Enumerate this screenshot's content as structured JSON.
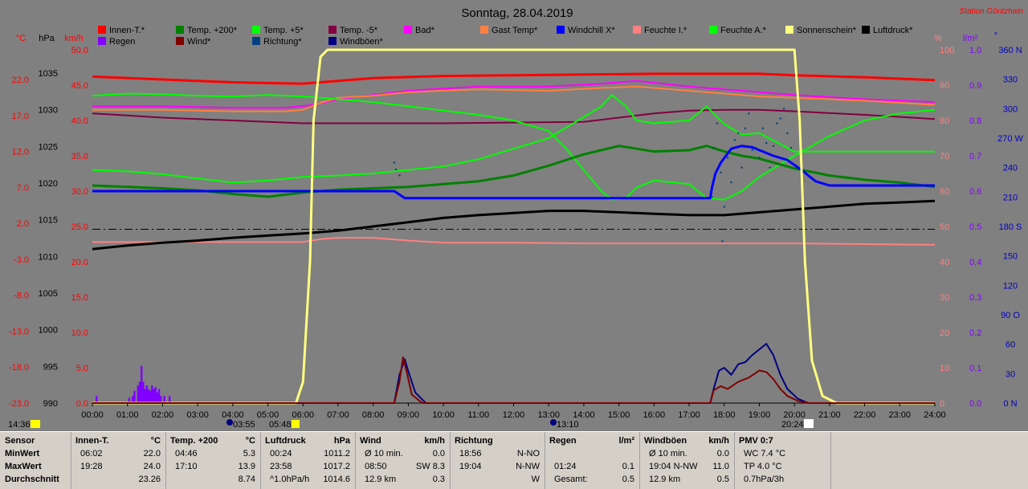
{
  "title": "Sonntag, 28.04.2019",
  "station": "Station Göritzhain",
  "legend_row1": [
    {
      "label": "Innen-T.*",
      "color": "#ff0000"
    },
    {
      "label": "Temp. +200*",
      "color": "#008000"
    },
    {
      "label": "Temp. +5*",
      "color": "#00ff00"
    },
    {
      "label": "Temp. -5*",
      "color": "#800040"
    },
    {
      "label": "Bad*",
      "color": "#ff00ff"
    },
    {
      "label": "Gast Temp*",
      "color": "#ff8040"
    },
    {
      "label": "Windchill X*",
      "color": "#0000ff"
    },
    {
      "label": "Feuchte I.*",
      "color": "#ff8080"
    },
    {
      "label": "Feuchte A.*",
      "color": "#00ff00"
    },
    {
      "label": "Sonnenschein*",
      "color": "#ffff80"
    },
    {
      "label": "Luftdruck*",
      "color": "#000000"
    }
  ],
  "legend_row2": [
    {
      "label": "Regen",
      "color": "#8000ff"
    },
    {
      "label": "Wind*",
      "color": "#800000"
    },
    {
      "label": "Richtung*",
      "color": "#004080"
    },
    {
      "label": "Windböen*",
      "color": "#000080"
    }
  ],
  "axis_units": {
    "temp": "°C",
    "press": "hPa",
    "wind": "km/h",
    "hum": "%",
    "rain": "l/m²",
    "dir": "°"
  },
  "axis_ticks": {
    "temp": [
      "22.0",
      "17.0",
      "12.0",
      "7.0",
      "2.0",
      "-3.0",
      "-8.0",
      "-13.0",
      "-18.0",
      "-23.0"
    ],
    "press": [
      "1035",
      "1030",
      "1025",
      "1020",
      "1015",
      "1010",
      "1005",
      "1000",
      "995",
      "990"
    ],
    "wind": [
      "50.0",
      "45.0",
      "40.0",
      "35.0",
      "30.0",
      "25.0",
      "20.0",
      "15.0",
      "10.0",
      "5.0",
      "0.0"
    ],
    "hum": [
      "100",
      "90",
      "80",
      "70",
      "60",
      "50",
      "40",
      "30",
      "20",
      "10",
      "0"
    ],
    "rain": [
      "1.0",
      "0.9",
      "0.8",
      "0.7",
      "0.6",
      "0.5",
      "0.4",
      "0.3",
      "0.2",
      "0.1",
      "0.0"
    ],
    "dir": [
      "360 N",
      "330",
      "300",
      "270 W",
      "240",
      "210",
      "180 S",
      "150",
      "120",
      "90 O",
      "60",
      "30",
      "0 N"
    ]
  },
  "x_ticks": [
    "00:00",
    "01:00",
    "02:00",
    "03:00",
    "04:00",
    "05:00",
    "06:00",
    "07:00",
    "08:00",
    "09:00",
    "10:00",
    "11:00",
    "12:00",
    "13:00",
    "14:00",
    "15:00",
    "16:00",
    "17:00",
    "18:00",
    "19:00",
    "20:00",
    "21:00",
    "22:00",
    "23:00",
    "24:00"
  ],
  "events": {
    "now": "14:36",
    "sunrise": "05:48",
    "dawn": "03:55",
    "sunset": "20:24",
    "moon": "13:10"
  },
  "chart_data": {
    "type": "line",
    "x_range_hours": [
      0,
      24
    ],
    "ylim_wind": [
      0,
      50
    ],
    "ylim_temp": [
      -23,
      22
    ],
    "ylim_press": [
      990,
      1035
    ],
    "ylim_hum": [
      0,
      100
    ],
    "ylim_rain": [
      0,
      1
    ],
    "ylim_dir": [
      0,
      360
    ],
    "series": [
      {
        "name": "Innen-T.*",
        "color": "#ff0000",
        "axis": "wind",
        "width": 3,
        "x": [
          0,
          2,
          4,
          5,
          6,
          7,
          8,
          10,
          12,
          14,
          16,
          18,
          19,
          20,
          22,
          24
        ],
        "y": [
          46.2,
          45.8,
          45.4,
          45.3,
          45.2,
          45.6,
          46.0,
          46.3,
          46.4,
          46.5,
          46.6,
          46.6,
          46.6,
          46.4,
          46.1,
          45.7
        ]
      },
      {
        "name": "Bad*",
        "color": "#ff00ff",
        "axis": "wind",
        "width": 2,
        "x": [
          0,
          2,
          4,
          5.5,
          6.3,
          7,
          8,
          9,
          11,
          13,
          14.5,
          15.5,
          17,
          19,
          20,
          22,
          24
        ],
        "y": [
          42.0,
          42.0,
          41.8,
          41.8,
          42.2,
          43.0,
          43.6,
          44.2,
          44.8,
          44.8,
          45.2,
          45.6,
          44.8,
          44.0,
          43.6,
          43.0,
          42.6
        ]
      },
      {
        "name": "Gast Temp*",
        "color": "#ff8040",
        "axis": "wind",
        "width": 2,
        "x": [
          0,
          2,
          4,
          5.5,
          6,
          6.5,
          7,
          8,
          9,
          11,
          13,
          14.5,
          15.5,
          17,
          19,
          20,
          22,
          24
        ],
        "y": [
          41.5,
          41.5,
          41.3,
          41.3,
          41.5,
          42.5,
          43.2,
          43.5,
          44.0,
          44.4,
          44.2,
          44.6,
          44.8,
          44.2,
          43.4,
          43.2,
          42.8,
          42.2
        ]
      },
      {
        "name": "Temp. -5*",
        "color": "#800040",
        "axis": "wind",
        "width": 2,
        "x": [
          0,
          2,
          4,
          6,
          8,
          10,
          12,
          14,
          15,
          16,
          17,
          18,
          19,
          20,
          22,
          24
        ],
        "y": [
          41.0,
          40.4,
          40.0,
          39.6,
          39.6,
          39.6,
          39.7,
          39.8,
          40.4,
          41.0,
          41.4,
          41.5,
          41.5,
          41.3,
          40.8,
          40.2
        ]
      },
      {
        "name": "Temp. +5* (upper)",
        "color": "#00ff00",
        "axis": "wind",
        "width": 2,
        "x": [
          0,
          1,
          2,
          3,
          4,
          5,
          6,
          7,
          8,
          9,
          10,
          11,
          12,
          13,
          13.5,
          14,
          14.5,
          14.8,
          15.2,
          15.5,
          16,
          17,
          17.5,
          18,
          18.5,
          19,
          20,
          21,
          22,
          23,
          24
        ],
        "y": [
          43.5,
          43.8,
          43.7,
          43.5,
          43.4,
          43.6,
          43.4,
          43.0,
          42.6,
          42.0,
          41.4,
          40.8,
          40.0,
          38.5,
          36.0,
          33.0,
          30.0,
          28.8,
          29.0,
          30.5,
          31.5,
          31.0,
          29.0,
          28.8,
          30.0,
          32.0,
          35.0,
          37.8,
          40.0,
          41.0,
          41.5
        ]
      },
      {
        "name": "Temp. +5* (lower)",
        "color": "#00ff00",
        "axis": "wind",
        "width": 2,
        "x": [
          0,
          1,
          2,
          3,
          4,
          5,
          6,
          7,
          8,
          9,
          10,
          11,
          12,
          13,
          13.5,
          14,
          14.5,
          14.8,
          15.2,
          15.5,
          16,
          17,
          17.5,
          18,
          18.5,
          19,
          20,
          21,
          22,
          23,
          24
        ],
        "y": [
          33.0,
          32.8,
          32.4,
          31.8,
          31.2,
          31.5,
          32.0,
          32.2,
          32.5,
          33.0,
          33.5,
          34.5,
          36.0,
          37.5,
          39.0,
          40.5,
          42.0,
          43.6,
          42.0,
          40.0,
          39.6,
          40.0,
          42.0,
          39.5,
          38.0,
          38.2,
          35.6,
          35.6,
          35.6,
          35.6,
          35.6
        ]
      },
      {
        "name": "Temp. +200*",
        "color": "#008000",
        "axis": "wind",
        "width": 3,
        "x": [
          0,
          1,
          2,
          3,
          4,
          5,
          6,
          7,
          8,
          9,
          10,
          11,
          12,
          13,
          14,
          15,
          16,
          17,
          17.5,
          18,
          18.5,
          19,
          20,
          21,
          22,
          23,
          24
        ],
        "y": [
          30.8,
          30.6,
          30.4,
          30.1,
          29.6,
          29.2,
          29.8,
          30.2,
          30.4,
          30.6,
          31.0,
          31.4,
          32.2,
          33.6,
          35.2,
          36.4,
          35.6,
          35.8,
          36.4,
          35.6,
          35.0,
          34.6,
          33.2,
          32.2,
          31.6,
          31.2,
          30.6
        ]
      },
      {
        "name": "Windchill X*",
        "color": "#0000ff",
        "axis": "wind",
        "width": 3,
        "x": [
          0,
          2,
          4,
          6,
          8,
          8.6,
          8.9,
          10,
          12,
          14,
          16,
          17.6,
          17.65,
          17.75,
          17.9,
          18.2,
          18.5,
          18.8,
          19,
          19.4,
          19.8,
          20.2,
          20.6,
          21,
          22,
          23,
          24
        ],
        "y": [
          30.0,
          30.0,
          30.0,
          30.0,
          30.0,
          30.0,
          29.0,
          29.0,
          29.0,
          29.0,
          29.0,
          29.0,
          30.5,
          32.5,
          34.0,
          36.0,
          36.4,
          36.2,
          35.8,
          35.0,
          34.4,
          33.0,
          31.4,
          30.8,
          30.8,
          30.8,
          30.8
        ]
      },
      {
        "name": "Feuchte I.*",
        "color": "#ff8080",
        "axis": "wind",
        "width": 2,
        "x": [
          0,
          2,
          4,
          6,
          6.5,
          7,
          8,
          9,
          10,
          12,
          14,
          16,
          18,
          20,
          22,
          24
        ],
        "y": [
          22.8,
          22.8,
          22.8,
          22.8,
          23.2,
          23.4,
          23.4,
          23.0,
          22.7,
          22.7,
          22.6,
          22.6,
          22.6,
          22.6,
          22.5,
          22.4
        ]
      },
      {
        "name": "Luftdruck*",
        "color": "#000000",
        "axis": "wind",
        "width": 3,
        "x": [
          0,
          1,
          2,
          3,
          4,
          5,
          6,
          7,
          8,
          9,
          10,
          11,
          12,
          13,
          14,
          15,
          16,
          17,
          18,
          19,
          20,
          21,
          22,
          23,
          24
        ],
        "y": [
          21.8,
          22.3,
          22.7,
          23.0,
          23.4,
          23.7,
          24.0,
          24.4,
          25.0,
          25.6,
          26.2,
          26.6,
          26.9,
          27.2,
          27.2,
          27.0,
          26.8,
          26.6,
          26.6,
          27.0,
          27.4,
          27.8,
          28.2,
          28.4,
          28.6
        ]
      },
      {
        "name": "Sonnenschein*",
        "color": "#ffff80",
        "axis": "wind",
        "width": 3,
        "x": [
          0,
          5.8,
          6.0,
          6.2,
          6.3,
          6.5,
          6.7,
          20.0,
          20.15,
          20.3,
          20.5,
          20.8,
          21.2,
          24
        ],
        "y": [
          0,
          0,
          3,
          20,
          40,
          49,
          50,
          50,
          40,
          20,
          6,
          1,
          0,
          0
        ]
      },
      {
        "name": "Windböen*",
        "color": "#000080",
        "axis": "wind",
        "width": 2,
        "x": [
          0,
          8.6,
          8.75,
          8.9,
          9.0,
          9.2,
          9.5,
          17.6,
          17.7,
          17.85,
          18.0,
          18.2,
          18.4,
          18.6,
          18.8,
          19.0,
          19.2,
          19.4,
          19.6,
          19.8,
          20.1,
          20.4,
          24
        ],
        "y": [
          0,
          0,
          4.0,
          6.2,
          4.5,
          1.5,
          0,
          0,
          2.0,
          4.6,
          5.0,
          4.0,
          5.5,
          5.8,
          6.8,
          7.6,
          8.4,
          6.8,
          4.0,
          2.0,
          0.6,
          0,
          0
        ]
      },
      {
        "name": "Wind*",
        "color": "#800000",
        "axis": "wind",
        "width": 2,
        "x": [
          0,
          8.6,
          8.75,
          8.85,
          8.95,
          9.1,
          9.4,
          17.6,
          17.7,
          17.9,
          18.1,
          18.4,
          18.7,
          19.0,
          19.2,
          19.4,
          19.6,
          19.8,
          20.1,
          20.4,
          24
        ],
        "y": [
          0,
          0,
          3.0,
          6.5,
          4.5,
          1.2,
          0,
          0,
          1.8,
          2.4,
          2.0,
          3.0,
          3.6,
          4.6,
          4.4,
          3.4,
          2.0,
          1.0,
          0.3,
          0,
          0
        ]
      }
    ],
    "dir_dots": {
      "name": "Richtung*",
      "color": "#004080",
      "x": [
        8.6,
        8.65,
        8.75,
        17.65,
        17.7,
        17.8,
        17.9,
        17.95,
        18.0,
        18.1,
        18.2,
        18.3,
        18.4,
        18.5,
        18.6,
        18.7,
        18.8,
        18.9,
        19.0,
        19.1,
        19.2,
        19.3,
        19.4,
        19.5,
        19.6,
        19.7,
        19.8,
        19.9
      ],
      "y": [
        245,
        238,
        232,
        210,
        260,
        285,
        235,
        165,
        200,
        250,
        225,
        268,
        275,
        240,
        280,
        295,
        258,
        260,
        250,
        280,
        265,
        240,
        262,
        285,
        290,
        300,
        275,
        260
      ]
    },
    "rain_bars": {
      "name": "Regen",
      "color": "#8000ff",
      "x": [
        0.12,
        1.05,
        1.15,
        1.2,
        1.3,
        1.35,
        1.4,
        1.45,
        1.5,
        1.55,
        1.6,
        1.65,
        1.7,
        1.75,
        1.8,
        1.85,
        1.9,
        1.95,
        2.05,
        2.2
      ],
      "y": [
        0.02,
        0.015,
        0.02,
        0.035,
        0.05,
        0.06,
        0.105,
        0.06,
        0.04,
        0.05,
        0.04,
        0.035,
        0.05,
        0.04,
        0.045,
        0.03,
        0.04,
        0.02,
        0.02,
        0.02
      ]
    },
    "reference_line": {
      "axis": "wind",
      "y": 24.6
    }
  },
  "table": [
    {
      "name": "Sensor",
      "unit": "",
      "rows": [
        [
          "MinWert",
          ""
        ],
        [
          "MaxWert",
          ""
        ],
        [
          "Durchschnitt",
          ""
        ]
      ]
    },
    {
      "name": "Innen-T.",
      "unit": "°C",
      "rows": [
        [
          "06:02",
          "22.0"
        ],
        [
          "19:28",
          "24.0"
        ],
        [
          "",
          "23.26"
        ]
      ]
    },
    {
      "name": "Temp. +200",
      "unit": "°C",
      "rows": [
        [
          "04:46",
          "5.3"
        ],
        [
          "17:10",
          "13.9"
        ],
        [
          "",
          "8.74"
        ]
      ]
    },
    {
      "name": "Luftdruck",
      "unit": "hPa",
      "rows": [
        [
          "00:24",
          "1011.2"
        ],
        [
          "23:58",
          "1017.2"
        ],
        [
          "^1.0hPa/h",
          "1014.6"
        ]
      ]
    },
    {
      "name": "Wind",
      "unit": "km/h",
      "rows": [
        [
          "Ø 10 min.",
          "0.0"
        ],
        [
          "08:50",
          "SW 8.3"
        ],
        [
          "12.9 km",
          "0.3"
        ]
      ]
    },
    {
      "name": "Richtung",
      "unit": "",
      "rows": [
        [
          "18:56",
          "N-NO"
        ],
        [
          "19:04",
          "N-NW"
        ],
        [
          "",
          "W"
        ]
      ]
    },
    {
      "name": "Regen",
      "unit": "l/m²",
      "rows": [
        [
          "",
          ""
        ],
        [
          "01:24",
          "0.1"
        ],
        [
          "Gesamt:",
          "0.5"
        ]
      ]
    },
    {
      "name": "Windböen",
      "unit": "km/h",
      "rows": [
        [
          "Ø 10 min.",
          "0.0"
        ],
        [
          "19:04   N-NW",
          "11.0"
        ],
        [
          "12.9 km",
          "0.5"
        ]
      ]
    },
    {
      "name": "PMV 0:7",
      "unit": "",
      "rows": [
        [
          "WC 7.4 °C",
          ""
        ],
        [
          "TP 4.0 °C",
          ""
        ],
        [
          "0.7hPa/3h",
          ""
        ]
      ]
    }
  ]
}
